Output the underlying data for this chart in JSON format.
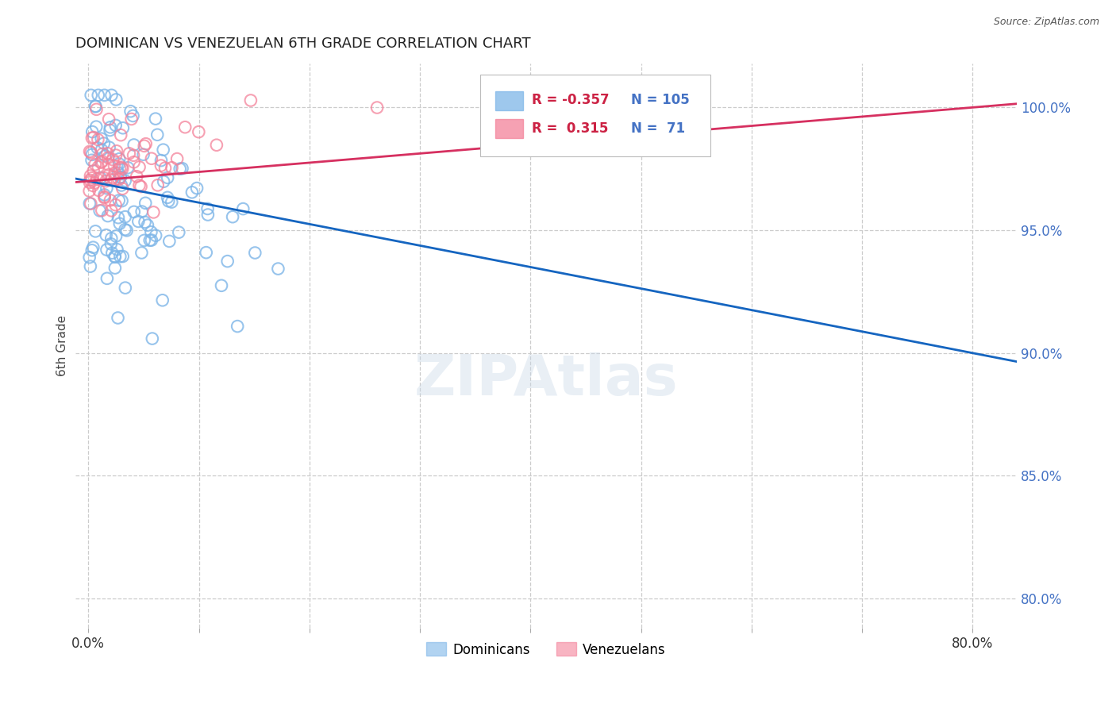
{
  "title": "DOMINICAN VS VENEZUELAN 6TH GRADE CORRELATION CHART",
  "source": "Source: ZipAtlas.com",
  "ylabel_left": "6th Grade",
  "ylabel_right_labels": [
    "100.0%",
    "95.0%",
    "90.0%",
    "85.0%",
    "80.0%"
  ],
  "ylabel_right_values": [
    1.0,
    0.95,
    0.9,
    0.85,
    0.8
  ],
  "xaxis_labels": [
    "0.0%",
    "",
    "",
    "",
    "",
    "",
    "",
    "",
    "80.0%"
  ],
  "xaxis_values": [
    0.0,
    0.1,
    0.2,
    0.3,
    0.4,
    0.5,
    0.6,
    0.7,
    0.8
  ],
  "xlim": [
    -0.012,
    0.84
  ],
  "ylim": [
    0.788,
    1.018
  ],
  "dominican_color": "#7EB6E8",
  "dominican_edge": "#5a9fd4",
  "venezuelan_color": "#F4829A",
  "venezuelan_edge": "#e05070",
  "dominican_R": -0.357,
  "dominican_N": 105,
  "venezuelan_R": 0.315,
  "venezuelan_N": 71,
  "trend_blue": "#1565c0",
  "trend_pink": "#d63060",
  "legend_label_dominicans": "Dominicans",
  "legend_label_venezuelans": "Venezuelans",
  "background_color": "#ffffff",
  "grid_color": "#cccccc",
  "title_color": "#222222",
  "right_axis_color": "#4472c4",
  "watermark": "ZIPAtlas"
}
